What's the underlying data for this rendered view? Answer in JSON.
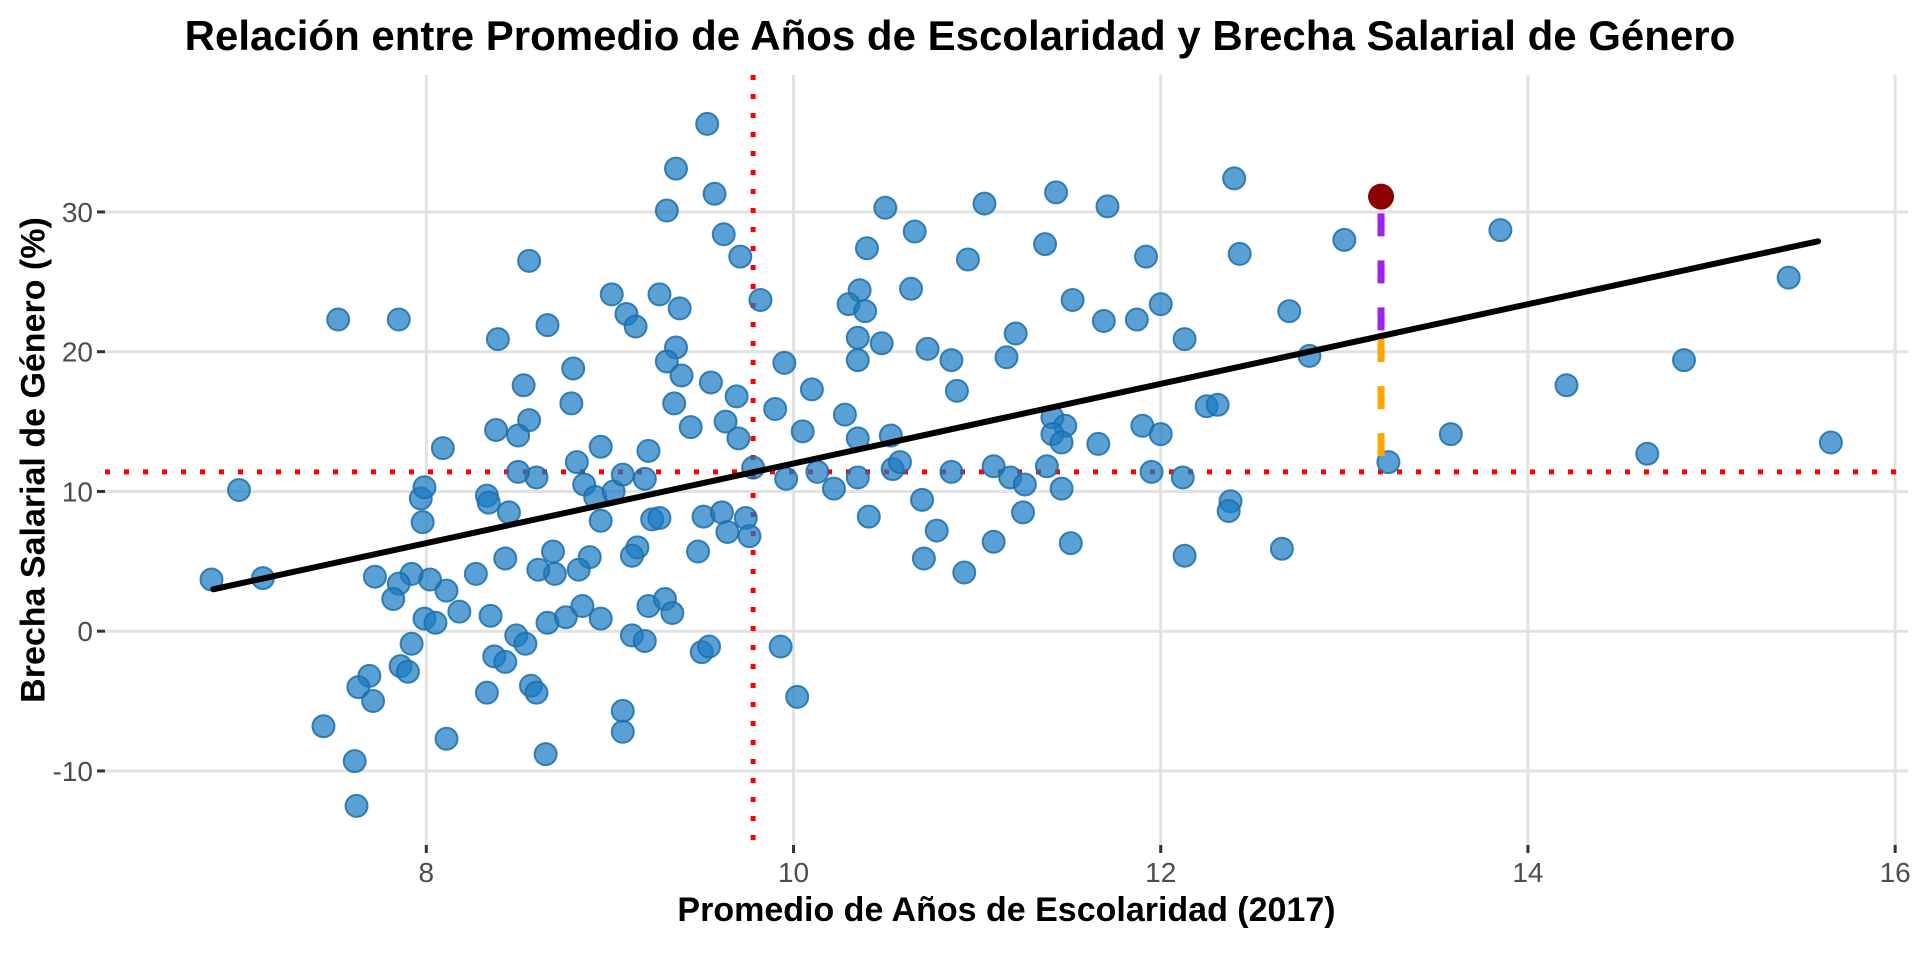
{
  "chart_data": {
    "type": "scatter",
    "title": "Relación entre Promedio de Años de Escolaridad y Brecha Salarial de Género",
    "xlabel": "Promedio de Años de Escolaridad (2017)",
    "ylabel": "Brecha Salarial de Género (%)",
    "x_ticks": [
      8,
      10,
      12,
      14,
      16
    ],
    "y_ticks": [
      -10,
      0,
      10,
      20,
      30
    ],
    "xlim": [
      6.25,
      16.07
    ],
    "ylim": [
      -15.3,
      39.8
    ],
    "grid": true,
    "legend": "none",
    "mean_x_line": {
      "x": 9.78,
      "style": "dotted"
    },
    "mean_y_line": {
      "y": 11.4,
      "style": "dotted"
    },
    "trend_line": {
      "x1": 6.84,
      "y1": 3.0,
      "x2": 15.58,
      "y2": 27.9
    },
    "highlight_point": {
      "x": 13.2,
      "y": 31.1
    },
    "observed_below_highlight": {
      "x": 13.24,
      "y": 12.1
    },
    "deviation_segments": [
      {
        "x": 13.2,
        "y_from": 29.9,
        "y_to": 21.2,
        "role": "above-trend"
      },
      {
        "x": 13.2,
        "y_from": 20.9,
        "y_to": 11.5,
        "role": "below-trend"
      }
    ],
    "points": [
      [
        6.83,
        3.7
      ],
      [
        7.11,
        3.8
      ],
      [
        6.98,
        10.1
      ],
      [
        15.42,
        25.3
      ],
      [
        13.24,
        12.1
      ],
      [
        9.53,
        36.3
      ],
      [
        9.36,
        33.1
      ],
      [
        9.31,
        30.1
      ],
      [
        8.56,
        26.5
      ],
      [
        9.01,
        24.1
      ],
      [
        9.09,
        22.7
      ],
      [
        9.14,
        21.8
      ],
      [
        9.27,
        24.1
      ],
      [
        9.38,
        23.1
      ],
      [
        9.36,
        20.3
      ],
      [
        9.31,
        19.3
      ],
      [
        9.39,
        18.3
      ],
      [
        7.52,
        22.3
      ],
      [
        7.85,
        22.3
      ],
      [
        8.39,
        20.9
      ],
      [
        8.66,
        21.9
      ],
      [
        8.8,
        18.8
      ],
      [
        8.53,
        17.6
      ],
      [
        8.56,
        15.1
      ],
      [
        8.38,
        14.4
      ],
      [
        8.09,
        13.1
      ],
      [
        8.5,
        14.0
      ],
      [
        8.79,
        16.3
      ],
      [
        9.21,
        12.9
      ],
      [
        9.57,
        31.3
      ],
      [
        9.62,
        28.4
      ],
      [
        9.71,
        26.8
      ],
      [
        9.82,
        23.7
      ],
      [
        10.5,
        30.3
      ],
      [
        10.66,
        28.6
      ],
      [
        11.04,
        30.6
      ],
      [
        11.43,
        31.4
      ],
      [
        11.71,
        30.4
      ],
      [
        10.4,
        27.4
      ],
      [
        10.36,
        24.4
      ],
      [
        10.3,
        23.4
      ],
      [
        10.39,
        22.9
      ],
      [
        10.64,
        24.5
      ],
      [
        11.37,
        27.7
      ],
      [
        12.43,
        27.0
      ],
      [
        11.52,
        23.7
      ],
      [
        11.69,
        22.2
      ],
      [
        11.87,
        22.3
      ],
      [
        12.0,
        23.4
      ],
      [
        11.21,
        21.3
      ],
      [
        10.35,
        21.0
      ],
      [
        10.48,
        20.6
      ],
      [
        10.35,
        19.4
      ],
      [
        10.73,
        20.2
      ],
      [
        10.86,
        19.4
      ],
      [
        11.16,
        19.6
      ],
      [
        12.81,
        19.7
      ],
      [
        10.89,
        17.2
      ],
      [
        9.69,
        16.8
      ],
      [
        9.63,
        15.0
      ],
      [
        9.7,
        13.8
      ],
      [
        10.28,
        15.5
      ],
      [
        10.35,
        13.8
      ],
      [
        10.53,
        14.0
      ],
      [
        11.41,
        15.3
      ],
      [
        11.48,
        14.7
      ],
      [
        11.41,
        14.1
      ],
      [
        11.46,
        13.5
      ],
      [
        11.66,
        13.4
      ],
      [
        11.9,
        14.7
      ],
      [
        12.0,
        14.1
      ],
      [
        12.25,
        16.1
      ],
      [
        12.31,
        16.2
      ],
      [
        9.78,
        11.7
      ],
      [
        7.97,
        9.5
      ],
      [
        7.99,
        10.3
      ],
      [
        7.98,
        7.8
      ],
      [
        8.33,
        9.7
      ],
      [
        8.34,
        9.2
      ],
      [
        8.45,
        8.5
      ],
      [
        8.6,
        11.0
      ],
      [
        8.5,
        11.4
      ],
      [
        8.82,
        12.1
      ],
      [
        8.86,
        10.5
      ],
      [
        8.92,
        9.6
      ],
      [
        8.95,
        7.9
      ],
      [
        9.02,
        10.0
      ],
      [
        9.07,
        11.2
      ],
      [
        9.19,
        10.9
      ],
      [
        9.23,
        8.0
      ],
      [
        9.27,
        8.1
      ],
      [
        9.51,
        8.2
      ],
      [
        9.61,
        8.5
      ],
      [
        9.64,
        7.1
      ],
      [
        9.74,
        8.1
      ],
      [
        9.76,
        6.8
      ],
      [
        9.48,
        5.7
      ],
      [
        9.15,
        6.0
      ],
      [
        9.12,
        5.4
      ],
      [
        8.89,
        5.3
      ],
      [
        8.83,
        4.4
      ],
      [
        8.7,
        4.1
      ],
      [
        8.61,
        4.4
      ],
      [
        8.69,
        5.7
      ],
      [
        8.43,
        5.2
      ],
      [
        8.27,
        4.1
      ],
      [
        8.11,
        2.9
      ],
      [
        8.02,
        3.7
      ],
      [
        7.92,
        4.1
      ],
      [
        7.85,
        3.4
      ],
      [
        7.82,
        2.3
      ],
      [
        7.72,
        3.9
      ],
      [
        7.99,
        0.9
      ],
      [
        8.05,
        0.6
      ],
      [
        8.18,
        1.4
      ],
      [
        8.35,
        1.1
      ],
      [
        8.49,
        -0.3
      ],
      [
        8.54,
        -0.9
      ],
      [
        8.37,
        -1.8
      ],
      [
        8.43,
        -2.2
      ],
      [
        7.92,
        -0.9
      ],
      [
        7.86,
        -2.5
      ],
      [
        7.9,
        -2.9
      ],
      [
        7.69,
        -3.2
      ],
      [
        7.63,
        -4.0
      ],
      [
        7.71,
        -5.0
      ],
      [
        7.44,
        -6.8
      ],
      [
        7.61,
        -9.3
      ],
      [
        7.62,
        -12.5
      ],
      [
        8.11,
        -7.7
      ],
      [
        8.65,
        -8.8
      ],
      [
        8.33,
        -4.4
      ],
      [
        8.57,
        -3.9
      ],
      [
        8.6,
        -4.4
      ],
      [
        9.07,
        -5.7
      ],
      [
        9.07,
        -7.2
      ],
      [
        8.66,
        0.6
      ],
      [
        8.76,
        1.0
      ],
      [
        8.85,
        1.8
      ],
      [
        8.95,
        0.9
      ],
      [
        9.21,
        1.8
      ],
      [
        9.3,
        2.3
      ],
      [
        9.34,
        1.3
      ],
      [
        9.12,
        -0.3
      ],
      [
        9.19,
        -0.7
      ],
      [
        9.5,
        -1.5
      ],
      [
        9.54,
        -1.1
      ],
      [
        9.93,
        -1.1
      ],
      [
        10.02,
        -4.7
      ],
      [
        9.96,
        10.9
      ],
      [
        10.13,
        11.4
      ],
      [
        10.22,
        10.2
      ],
      [
        10.35,
        11.0
      ],
      [
        10.54,
        11.6
      ],
      [
        10.7,
        9.4
      ],
      [
        10.86,
        11.4
      ],
      [
        10.58,
        12.1
      ],
      [
        11.09,
        11.8
      ],
      [
        11.18,
        11.0
      ],
      [
        11.26,
        10.5
      ],
      [
        11.38,
        11.8
      ],
      [
        11.46,
        10.2
      ],
      [
        11.25,
        8.5
      ],
      [
        10.78,
        7.2
      ],
      [
        11.09,
        6.4
      ],
      [
        10.71,
        5.2
      ],
      [
        10.41,
        8.2
      ],
      [
        11.51,
        6.3
      ],
      [
        10.93,
        4.2
      ],
      [
        12.38,
        9.3
      ],
      [
        12.13,
        5.4
      ],
      [
        12.66,
        5.9
      ],
      [
        14.21,
        17.6
      ],
      [
        13.58,
        14.1
      ],
      [
        14.65,
        12.7
      ],
      [
        15.65,
        13.5
      ],
      [
        14.85,
        19.4
      ],
      [
        13.0,
        28.0
      ],
      [
        12.4,
        32.4
      ],
      [
        13.85,
        28.7
      ],
      [
        12.7,
        22.9
      ],
      [
        11.95,
        11.4
      ],
      [
        12.12,
        11.0
      ],
      [
        12.37,
        8.6
      ],
      [
        10.95,
        26.6
      ],
      [
        11.92,
        26.8
      ],
      [
        12.13,
        20.9
      ],
      [
        8.95,
        13.2
      ],
      [
        9.44,
        14.6
      ],
      [
        9.35,
        16.3
      ],
      [
        9.9,
        15.9
      ],
      [
        10.05,
        14.3
      ],
      [
        9.55,
        17.8
      ],
      [
        10.1,
        17.3
      ],
      [
        9.95,
        19.2
      ]
    ],
    "colors": {
      "point_fill": "#1C7BC4",
      "point_stroke": "#1C6FA8",
      "highlight": "#8B0000",
      "trend": "#000000",
      "mean_lines": "#FF0000",
      "deviation_above": "#A020F0",
      "deviation_below": "#FFA500",
      "grid": "#E2E2E2",
      "tick_text": "#4D4D4D",
      "tick_mark": "#333333",
      "background": "#FFFFFF"
    }
  }
}
